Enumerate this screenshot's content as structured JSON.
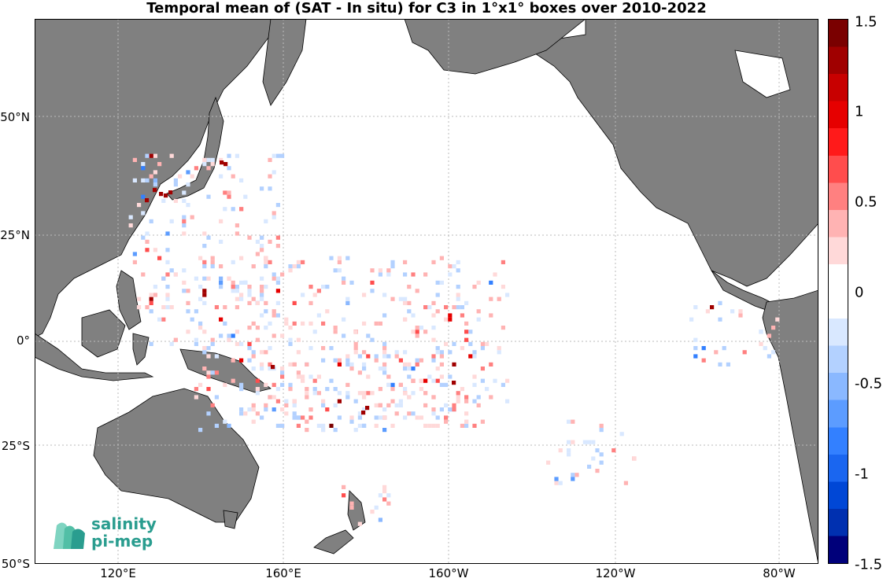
{
  "title": "Temporal mean of (SAT - In situ) for C3 in 1°x1° boxes over 2010-2022",
  "latitude_labels": [
    "50°N",
    "25°N",
    "0°",
    "25°S",
    "50°S"
  ],
  "longitude_labels": [
    "120°E",
    "160°E",
    "160°W",
    "120°W",
    "80°W"
  ],
  "colorbar": {
    "labels": [
      "1.5",
      "1",
      "0.5",
      "0",
      "-0.5",
      "-1",
      "-1.5"
    ],
    "min": -1.5,
    "max": 1.5,
    "high_color": "#7a0000",
    "mid_color": "#ffffff",
    "low_color": "#00007a"
  },
  "logo": {
    "line1": "salinity",
    "line2": "pi-mep"
  },
  "colors": {
    "land": "#808080",
    "grid": "#bbbbbb"
  }
}
